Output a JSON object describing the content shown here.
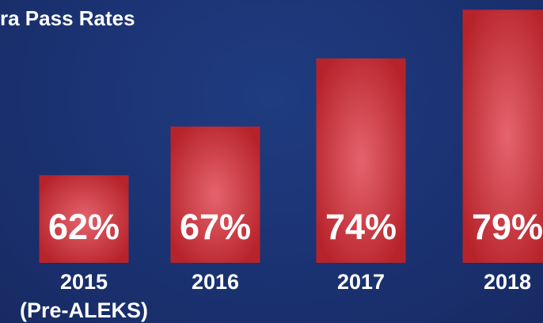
{
  "chart_data": {
    "type": "bar",
    "title": "ra Pass Rates",
    "categories": [
      "2015\n(Pre-ALEKS)",
      "2016",
      "2017",
      "2018"
    ],
    "values": [
      62,
      67,
      74,
      79
    ],
    "value_labels": [
      "62%",
      "67%",
      "74%",
      "79%"
    ],
    "color": "#c8323a",
    "ylim": [
      53,
      80
    ]
  }
}
